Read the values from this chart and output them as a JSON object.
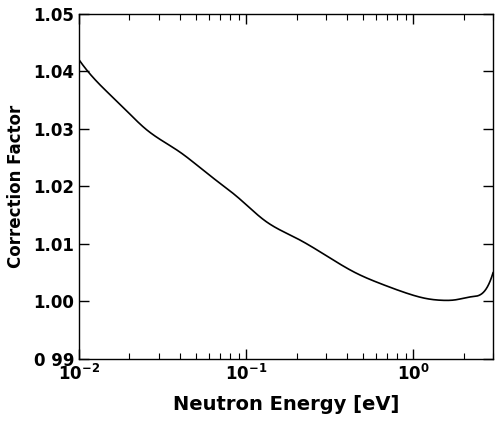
{
  "xmin": 0.01,
  "xmax": 3.0,
  "ymin": 0.99,
  "ymax": 1.05,
  "xlabel": "Neutron Energy [eV]",
  "ylabel": "Correction Factor",
  "line_color": "#000000",
  "line_width": 1.2,
  "background_color": "#ffffff",
  "yticks": [
    0.99,
    1.0,
    1.01,
    1.02,
    1.03,
    1.04,
    1.05
  ],
  "ytick_labels": [
    "0 99",
    "1.00",
    "1.01",
    "1.02",
    "1.03",
    "1.04",
    "1.05"
  ],
  "control_x": [
    0.01,
    0.013,
    0.018,
    0.025,
    0.04,
    0.06,
    0.09,
    0.13,
    0.2,
    0.3,
    0.45,
    0.65,
    0.9,
    1.2,
    1.5,
    1.8,
    2.2,
    2.7,
    3.0
  ],
  "control_y": [
    1.042,
    1.038,
    1.034,
    1.03,
    1.026,
    1.022,
    1.018,
    1.014,
    1.011,
    1.008,
    1.005,
    1.003,
    1.0015,
    1.0005,
    1.0002,
    1.0003,
    1.0008,
    1.002,
    1.005
  ]
}
